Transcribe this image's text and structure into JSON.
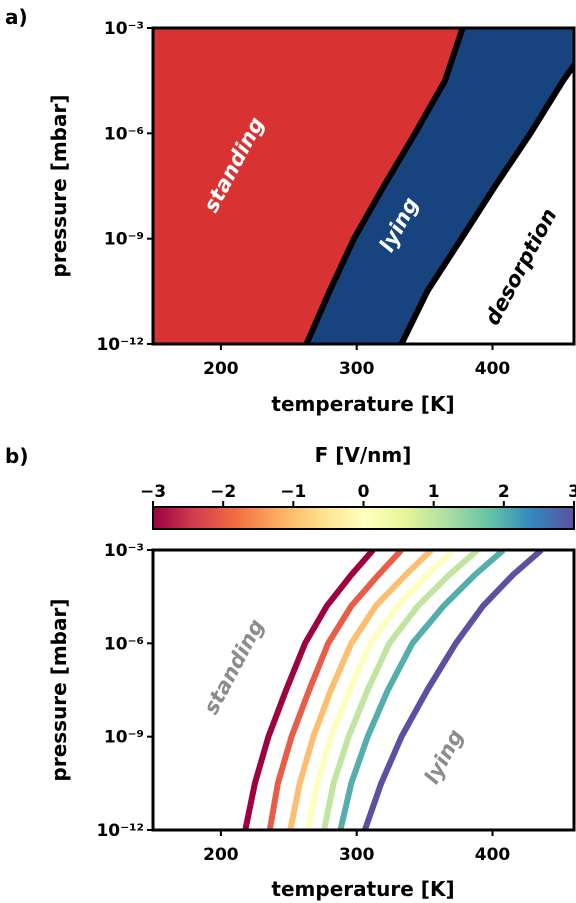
{
  "panel_a": {
    "panel_label": "a)",
    "chart_data": {
      "type": "area",
      "xlabel": "temperature [K]",
      "ylabel": "pressure [mbar]",
      "xlim": [
        150,
        460
      ],
      "ylim_log10": [
        -12,
        -3
      ],
      "x_ticks": [
        200,
        300,
        400
      ],
      "y_ticks": [
        -12,
        -9,
        -6,
        -3
      ],
      "regions": [
        {
          "label": "standing",
          "color": "#d83232"
        },
        {
          "label": "lying",
          "color": "#17447e"
        },
        {
          "label": "desorption",
          "color": "#ffffff"
        }
      ],
      "boundaries": [
        {
          "name": "standing-lying",
          "x": [
            263,
            280,
            298,
            320,
            343,
            365,
            378
          ],
          "log10_p": [
            -12,
            -10.5,
            -9,
            -7.5,
            -6,
            -4.5,
            -3
          ]
        },
        {
          "name": "lying-desorption",
          "x": [
            333,
            352,
            377,
            402,
            428,
            452,
            470
          ],
          "log10_p": [
            -12,
            -10.5,
            -9,
            -7.5,
            -6,
            -4.5,
            -3.5
          ]
        }
      ]
    }
  },
  "panel_b": {
    "panel_label": "b)",
    "colorbar": {
      "title": "F [V/nm]",
      "ticks": [
        "−3",
        "−2",
        "−1",
        "0",
        "1",
        "2",
        "3"
      ],
      "min": -3,
      "max": 3
    },
    "chart_data": {
      "type": "line",
      "xlabel": "temperature [K]",
      "ylabel": "pressure [mbar]",
      "xlim": [
        150,
        460
      ],
      "ylim_log10": [
        -12,
        -3
      ],
      "x_ticks": [
        200,
        300,
        400
      ],
      "y_ticks": [
        -12,
        -9,
        -6,
        -3
      ],
      "annotations": [
        "standing",
        "lying"
      ],
      "series": [
        {
          "F": -3,
          "color": "#9e0142",
          "x": [
            218,
            225,
            235,
            248,
            262,
            278,
            296,
            312
          ],
          "log10_p": [
            -12,
            -10.5,
            -9,
            -7.5,
            -6,
            -4.8,
            -3.8,
            -3
          ]
        },
        {
          "F": -2,
          "color": "#e95c47",
          "x": [
            236,
            242,
            252,
            265,
            279,
            296,
            316,
            333
          ],
          "log10_p": [
            -12,
            -10.5,
            -9,
            -7.5,
            -6,
            -4.8,
            -3.8,
            -3
          ]
        },
        {
          "F": -1,
          "color": "#fdbf6f",
          "x": [
            251,
            258,
            268,
            281,
            296,
            314,
            336,
            355
          ],
          "log10_p": [
            -12,
            -10.5,
            -9,
            -7.5,
            -6,
            -4.8,
            -3.8,
            -3
          ]
        },
        {
          "F": 0,
          "color": "#feffbe",
          "x": [
            264,
            271,
            281,
            295,
            310,
            330,
            352,
            371
          ],
          "log10_p": [
            -12,
            -10.5,
            -9,
            -7.5,
            -6,
            -4.8,
            -3.8,
            -3
          ]
        },
        {
          "F": 0.7,
          "color": "#bfe5a0",
          "x": [
            276,
            283,
            294,
            308,
            324,
            345,
            368,
            389
          ],
          "log10_p": [
            -12,
            -10.5,
            -9,
            -7.5,
            -6,
            -4.8,
            -3.8,
            -3
          ]
        },
        {
          "F": 1.4,
          "color": "#54aead",
          "x": [
            288,
            296,
            308,
            323,
            341,
            364,
            387,
            408
          ],
          "log10_p": [
            -12,
            -10.5,
            -9,
            -7.5,
            -6,
            -4.8,
            -3.8,
            -3
          ]
        },
        {
          "F": 3,
          "color": "#5e4fa2",
          "x": [
            306,
            318,
            333,
            352,
            373,
            393,
            415,
            436
          ],
          "log10_p": [
            -12,
            -10.5,
            -9,
            -7.5,
            -6,
            -4.8,
            -3.8,
            -3
          ]
        }
      ]
    }
  }
}
